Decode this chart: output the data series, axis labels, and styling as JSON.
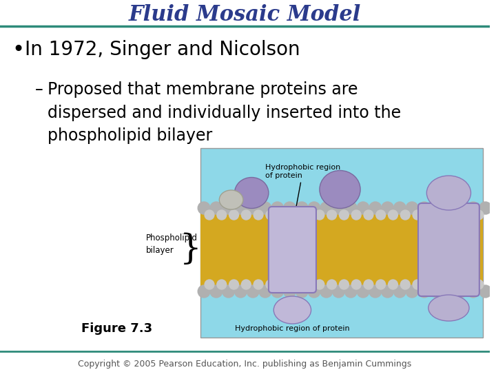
{
  "title": "Fluid Mosaic Model",
  "title_color": "#2B3B8C",
  "title_fontsize": 22,
  "title_fontstyle": "bold",
  "title_italic": true,
  "bg_color": "#FFFFFF",
  "top_line_color": "#2E8B7A",
  "bottom_line_color": "#2E8B7A",
  "bullet_text": "In 1972, Singer and Nicolson",
  "bullet_fontsize": 20,
  "sub_bullet_text": "Proposed that membrane proteins are\ndispersed and individually inserted into the\nphospholipid bilayer",
  "sub_bullet_fontsize": 17,
  "figure_label": "Figure 7.3",
  "figure_label_fontsize": 13,
  "label_hydrophobic_top": "Hydrophobic region\nof protein",
  "label_phospholipid": "Phospholipid\nbilayer",
  "label_hydrophobic_bottom": "Hydrophobic region of protein",
  "img_bg_color": "#8ED8E8",
  "copyright_text": "Copyright © 2005 Pearson Education, Inc. publishing as Benjamin Cummings",
  "copyright_fontsize": 9
}
